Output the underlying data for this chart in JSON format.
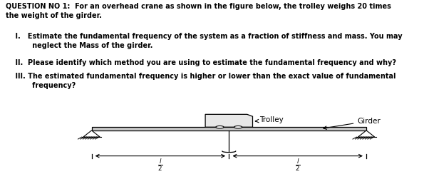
{
  "title_text": "QUESTION NO 1:  For an overhead crane as shown in the figure below, the trolley weighs 20 times\nthe weight of the girder.",
  "item1": "    I.   Estimate the fundamental frequency of the system as a fraction of stiffness and mass. You may\n           neglect the Mass of the girder.",
  "item2": "    II.  Please identify which method you are using to estimate the fundamental frequency and why?",
  "item3": "    III. The estimated fundamental frequency is higher or lower than the exact value of fundamental\n           frequency?",
  "label_trolley": "Trolley",
  "label_girder": "Girder",
  "bg_color": "#ffffff",
  "text_color": "#000000",
  "girder_color": "#c8c8c8",
  "trolley_color": "#e8e8e8",
  "line_color": "#000000"
}
